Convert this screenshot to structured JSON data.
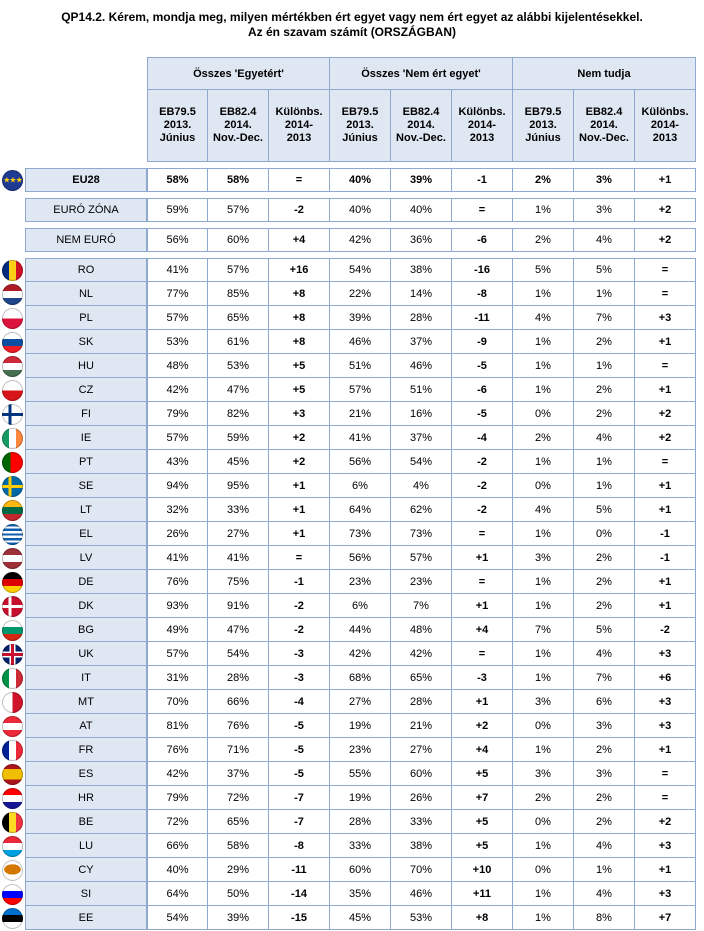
{
  "title_line1": "QP14.2. Kérem, mondja meg, milyen mértékben ért egyet vagy nem ért egyet az alábbi kijelentésekkel.",
  "title_line2": "Az én szavam számít (ORSZÁGBAN)",
  "groups": [
    "Összes 'Egyetért'",
    "Összes 'Nem ért egyet'",
    "Nem tudja"
  ],
  "subheaders": [
    [
      "EB79.5",
      "2013.",
      "Június"
    ],
    [
      "EB82.4",
      "2014.",
      "Nov.-Dec."
    ],
    [
      "Különbs.",
      "2014-",
      "2013"
    ]
  ],
  "rows": [
    {
      "label": "EU28",
      "flag": [
        "eu"
      ],
      "v": [
        "58%",
        "58%",
        "=",
        "40%",
        "39%",
        "-1",
        "2%",
        "3%",
        "+1"
      ]
    },
    {
      "label": "EURÓ ZÓNA",
      "flag": [],
      "v": [
        "59%",
        "57%",
        "-2",
        "40%",
        "40%",
        "=",
        "1%",
        "3%",
        "+2"
      ]
    },
    {
      "label": "NEM EURÓ",
      "flag": [],
      "v": [
        "56%",
        "60%",
        "+4",
        "42%",
        "36%",
        "-6",
        "2%",
        "4%",
        "+2"
      ]
    },
    {
      "label": "RO",
      "flag": [
        "#002b7f",
        "#fcd116",
        "#ce1126"
      ],
      "dir": "v",
      "v": [
        "41%",
        "57%",
        "+16",
        "54%",
        "38%",
        "-16",
        "5%",
        "5%",
        "="
      ]
    },
    {
      "label": "NL",
      "flag": [
        "#ae1c28",
        "#ffffff",
        "#21468b"
      ],
      "dir": "h",
      "v": [
        "77%",
        "85%",
        "+8",
        "22%",
        "14%",
        "-8",
        "1%",
        "1%",
        "="
      ]
    },
    {
      "label": "PL",
      "flag": [
        "#ffffff",
        "#dc143c"
      ],
      "dir": "h",
      "v": [
        "57%",
        "65%",
        "+8",
        "39%",
        "28%",
        "-11",
        "4%",
        "7%",
        "+3"
      ]
    },
    {
      "label": "SK",
      "flag": [
        "#ffffff",
        "#0b4ea2",
        "#ee1c25"
      ],
      "dir": "h",
      "v": [
        "53%",
        "61%",
        "+8",
        "46%",
        "37%",
        "-9",
        "1%",
        "2%",
        "+1"
      ]
    },
    {
      "label": "HU",
      "flag": [
        "#ce2939",
        "#ffffff",
        "#477050"
      ],
      "dir": "h",
      "v": [
        "48%",
        "53%",
        "+5",
        "51%",
        "46%",
        "-5",
        "1%",
        "1%",
        "="
      ]
    },
    {
      "label": "CZ",
      "flag": [
        "#ffffff",
        "#d7141a"
      ],
      "dir": "h",
      "v": [
        "42%",
        "47%",
        "+5",
        "57%",
        "51%",
        "-6",
        "1%",
        "2%",
        "+1"
      ]
    },
    {
      "label": "FI",
      "flag": [
        "#ffffff",
        "#003580"
      ],
      "dir": "cross",
      "v": [
        "79%",
        "82%",
        "+3",
        "21%",
        "16%",
        "-5",
        "0%",
        "2%",
        "+2"
      ]
    },
    {
      "label": "IE",
      "flag": [
        "#169b62",
        "#ffffff",
        "#ff883e"
      ],
      "dir": "v",
      "v": [
        "57%",
        "59%",
        "+2",
        "41%",
        "37%",
        "-4",
        "2%",
        "4%",
        "+2"
      ]
    },
    {
      "label": "PT",
      "flag": [
        "#006600",
        "#ff0000"
      ],
      "dir": "split",
      "v": [
        "43%",
        "45%",
        "+2",
        "56%",
        "54%",
        "-2",
        "1%",
        "1%",
        "="
      ]
    },
    {
      "label": "SE",
      "flag": [
        "#006aa7",
        "#fecc00"
      ],
      "dir": "cross",
      "v": [
        "94%",
        "95%",
        "+1",
        "6%",
        "4%",
        "-2",
        "0%",
        "1%",
        "+1"
      ]
    },
    {
      "label": "LT",
      "flag": [
        "#fdb913",
        "#006a44",
        "#c1272d"
      ],
      "dir": "h",
      "v": [
        "32%",
        "33%",
        "+1",
        "64%",
        "62%",
        "-2",
        "4%",
        "5%",
        "+1"
      ]
    },
    {
      "label": "EL",
      "flag": [
        "#0d5eaf",
        "#ffffff"
      ],
      "dir": "stripes",
      "v": [
        "26%",
        "27%",
        "+1",
        "73%",
        "73%",
        "=",
        "1%",
        "0%",
        "-1"
      ]
    },
    {
      "label": "LV",
      "flag": [
        "#9e3039",
        "#ffffff",
        "#9e3039"
      ],
      "dir": "h",
      "v": [
        "41%",
        "41%",
        "=",
        "56%",
        "57%",
        "+1",
        "3%",
        "2%",
        "-1"
      ]
    },
    {
      "label": "DE",
      "flag": [
        "#000000",
        "#dd0000",
        "#ffce00"
      ],
      "dir": "h",
      "v": [
        "76%",
        "75%",
        "-1",
        "23%",
        "23%",
        "=",
        "1%",
        "2%",
        "+1"
      ]
    },
    {
      "label": "DK",
      "flag": [
        "#c8102e",
        "#ffffff"
      ],
      "dir": "cross",
      "v": [
        "93%",
        "91%",
        "-2",
        "6%",
        "7%",
        "+1",
        "1%",
        "2%",
        "+1"
      ]
    },
    {
      "label": "BG",
      "flag": [
        "#ffffff",
        "#00966e",
        "#d62612"
      ],
      "dir": "h",
      "v": [
        "49%",
        "47%",
        "-2",
        "44%",
        "48%",
        "+4",
        "7%",
        "5%",
        "-2"
      ]
    },
    {
      "label": "UK",
      "flag": [
        "#012169",
        "#c8102e"
      ],
      "dir": "uk",
      "v": [
        "57%",
        "54%",
        "-3",
        "42%",
        "42%",
        "=",
        "1%",
        "4%",
        "+3"
      ]
    },
    {
      "label": "IT",
      "flag": [
        "#009246",
        "#ffffff",
        "#ce2b37"
      ],
      "dir": "v",
      "v": [
        "31%",
        "28%",
        "-3",
        "68%",
        "65%",
        "-3",
        "1%",
        "7%",
        "+6"
      ]
    },
    {
      "label": "MT",
      "flag": [
        "#ffffff",
        "#cf142b"
      ],
      "dir": "v2",
      "v": [
        "70%",
        "66%",
        "-4",
        "27%",
        "28%",
        "+1",
        "3%",
        "6%",
        "+3"
      ]
    },
    {
      "label": "AT",
      "flag": [
        "#ed2939",
        "#ffffff",
        "#ed2939"
      ],
      "dir": "h",
      "v": [
        "81%",
        "76%",
        "-5",
        "19%",
        "21%",
        "+2",
        "0%",
        "3%",
        "+3"
      ]
    },
    {
      "label": "FR",
      "flag": [
        "#002395",
        "#ffffff",
        "#ed2939"
      ],
      "dir": "v",
      "v": [
        "76%",
        "71%",
        "-5",
        "23%",
        "27%",
        "+4",
        "1%",
        "2%",
        "+1"
      ]
    },
    {
      "label": "ES",
      "flag": [
        "#aa151b",
        "#f1bf00",
        "#aa151b"
      ],
      "dir": "es",
      "v": [
        "42%",
        "37%",
        "-5",
        "55%",
        "60%",
        "+5",
        "3%",
        "3%",
        "="
      ]
    },
    {
      "label": "HR",
      "flag": [
        "#ff0000",
        "#ffffff",
        "#171796"
      ],
      "dir": "h",
      "v": [
        "79%",
        "72%",
        "-7",
        "19%",
        "26%",
        "+7",
        "2%",
        "2%",
        "="
      ]
    },
    {
      "label": "BE",
      "flag": [
        "#000000",
        "#fdda24",
        "#ef3340"
      ],
      "dir": "v",
      "v": [
        "72%",
        "65%",
        "-7",
        "28%",
        "33%",
        "+5",
        "0%",
        "2%",
        "+2"
      ]
    },
    {
      "label": "LU",
      "flag": [
        "#ed2939",
        "#ffffff",
        "#00a1de"
      ],
      "dir": "h",
      "v": [
        "66%",
        "58%",
        "-8",
        "33%",
        "38%",
        "+5",
        "1%",
        "4%",
        "+3"
      ]
    },
    {
      "label": "CY",
      "flag": [
        "#ffffff",
        "#d57800"
      ],
      "dir": "cy",
      "v": [
        "40%",
        "29%",
        "-11",
        "60%",
        "70%",
        "+10",
        "0%",
        "1%",
        "+1"
      ]
    },
    {
      "label": "SI",
      "flag": [
        "#ffffff",
        "#0000ff",
        "#ff0000"
      ],
      "dir": "h",
      "v": [
        "64%",
        "50%",
        "-14",
        "35%",
        "46%",
        "+11",
        "1%",
        "4%",
        "+3"
      ]
    },
    {
      "label": "EE",
      "flag": [
        "#0072ce",
        "#000000",
        "#ffffff"
      ],
      "dir": "h",
      "v": [
        "54%",
        "39%",
        "-15",
        "45%",
        "53%",
        "+8",
        "1%",
        "8%",
        "+7"
      ]
    }
  ],
  "chart_data": {
    "type": "table",
    "title": "QP14.2. Kérem, mondja meg, milyen mértékben ért egyet vagy nem ért egyet az alábbi kijelentésekkel. Az én szavam számít (ORSZÁGBAN)",
    "columns": [
      "Összes 'Egyetért' EB79.5 2013. Június",
      "Összes 'Egyetért' EB82.4 2014. Nov.-Dec.",
      "Összes 'Egyetért' Különbs. 2014-2013",
      "Összes 'Nem ért egyet' EB79.5 2013. Június",
      "Összes 'Nem ért egyet' EB82.4 2014. Nov.-Dec.",
      "Összes 'Nem ért egyet' Különbs. 2014-2013",
      "Nem tudja EB79.5 2013. Június",
      "Nem tudja EB82.4 2014. Nov.-Dec.",
      "Nem tudja Különbs. 2014-2013"
    ],
    "source_rows": "rows"
  }
}
